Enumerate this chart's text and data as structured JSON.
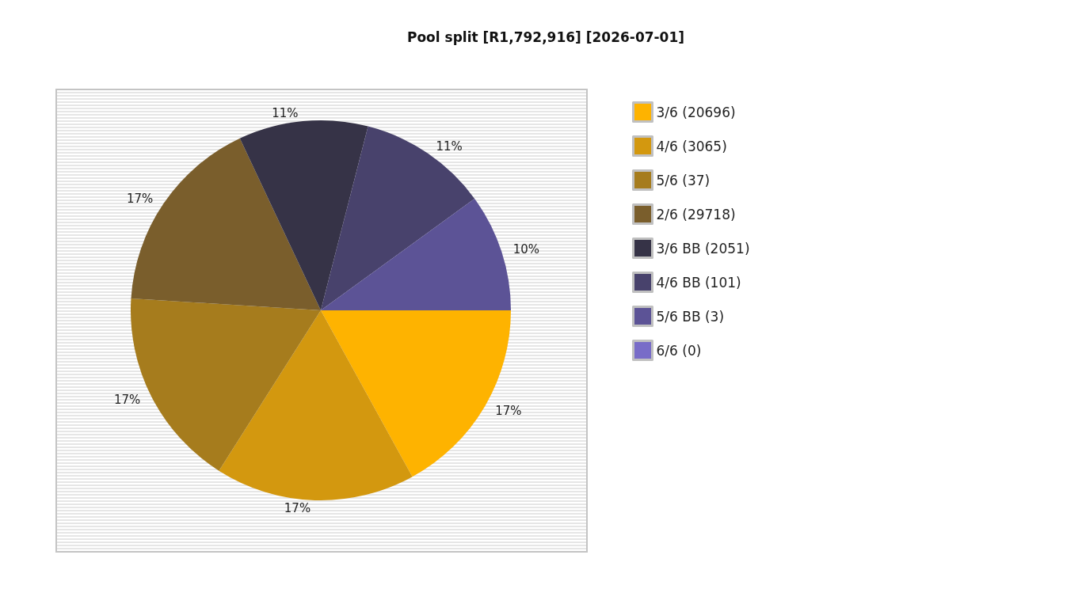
{
  "chart_data": {
    "type": "pie",
    "title": "Pool split [R1,792,916] [2026-07-01]",
    "categories": [
      "3/6 (20696)",
      "4/6 (3065)",
      "5/6 (37)",
      "2/6 (29718)",
      "3/6 BB (2051)",
      "4/6 BB (101)",
      "5/6 BB (3)",
      "6/6 (0)"
    ],
    "values": [
      17,
      17,
      17,
      17,
      11,
      11,
      10,
      0
    ],
    "colors": [
      "#feb300",
      "#d3980f",
      "#a67c1d",
      "#7a5e2c",
      "#363347",
      "#48426c",
      "#5c5396",
      "#786cc8"
    ],
    "value_labels": [
      "17%",
      "17%",
      "17%",
      "17%",
      "11%",
      "11%",
      "10%",
      null
    ],
    "legend": "right"
  }
}
